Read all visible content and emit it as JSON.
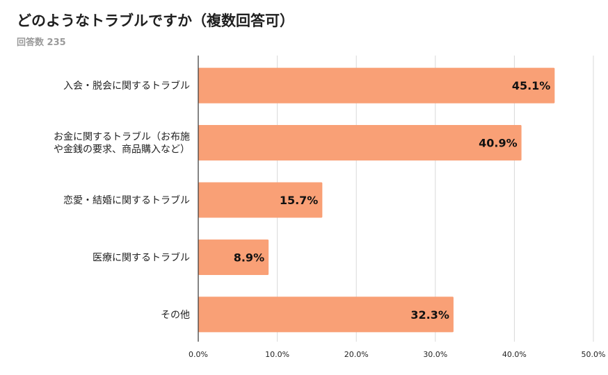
{
  "header": {
    "title": "どのようなトラブルですか（複数回答可）",
    "subtitle": "回答数 235"
  },
  "colors": {
    "bar": "#F9A076",
    "grid": "#d9d9d9",
    "axis": "#333333"
  },
  "chart_data": {
    "type": "bar",
    "orientation": "horizontal",
    "title": "どのようなトラブルですか（複数回答可）",
    "subtitle": "回答数 235",
    "categories": [
      [
        "入会・脱会に関するトラブル"
      ],
      [
        "お金に関するトラブル（お布施",
        "や金銭の要求、商品購入など）"
      ],
      [
        "恋愛・結婚に関するトラブル"
      ],
      [
        "医療に関するトラブル"
      ],
      [
        "その他"
      ]
    ],
    "values": [
      45.1,
      40.9,
      15.7,
      8.9,
      32.3
    ],
    "value_labels": [
      "45.1%",
      "40.9%",
      "15.7%",
      "8.9%",
      "32.3%"
    ],
    "xlim": [
      0,
      50
    ],
    "xticks": [
      0,
      10,
      20,
      30,
      40,
      50
    ],
    "xtick_labels": [
      "0.0%",
      "10.0%",
      "20.0%",
      "30.0%",
      "40.0%",
      "50.0%"
    ],
    "xlabel": "",
    "ylabel": "",
    "grid": true,
    "legend": "none"
  }
}
